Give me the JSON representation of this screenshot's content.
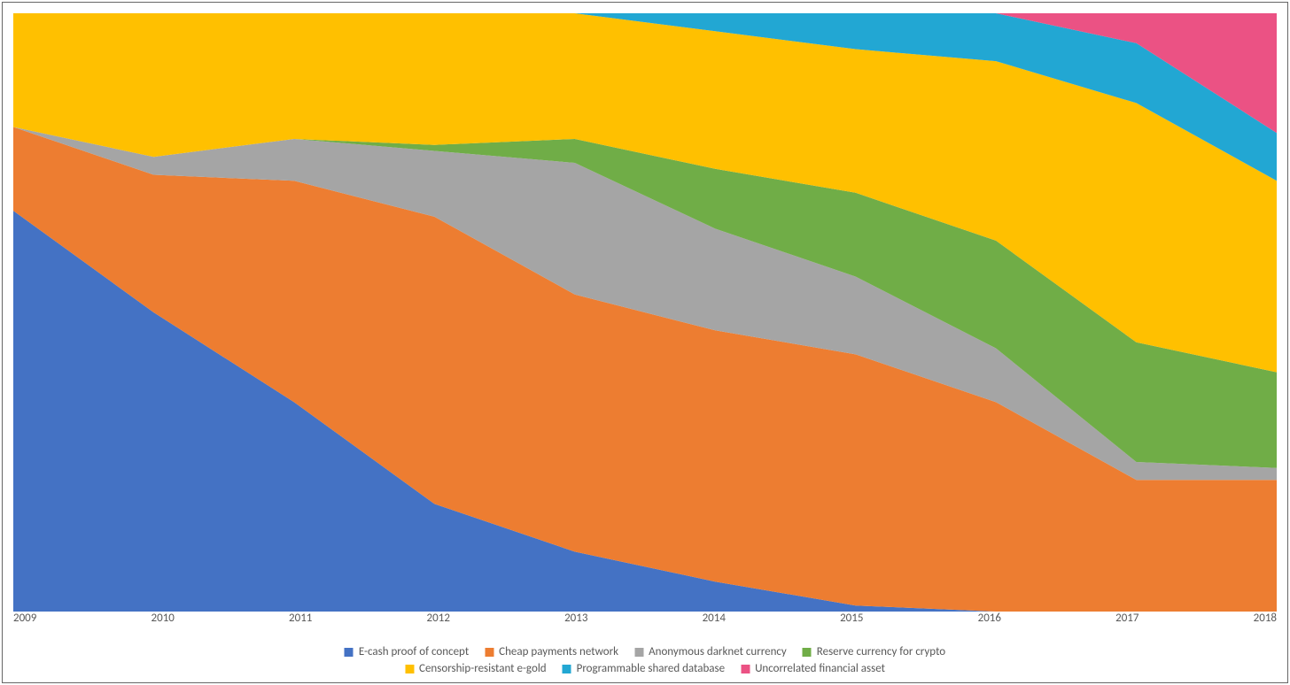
{
  "chart": {
    "type": "area-stacked-100",
    "background_color": "#ffffff",
    "border_color": "#666666",
    "xlim": [
      2009,
      2018
    ],
    "xtick_step": 1,
    "ylim": [
      0,
      100
    ],
    "label_fontsize": 13,
    "label_color": "#595959",
    "categories": [
      "2009",
      "2010",
      "2011",
      "2012",
      "2013",
      "2014",
      "2015",
      "2016",
      "2017",
      "2018"
    ],
    "series": [
      {
        "name": "E-cash proof of concept",
        "color": "#4472c4",
        "values": [
          67,
          50,
          35,
          18,
          10,
          5,
          1,
          0,
          0,
          0
        ]
      },
      {
        "name": "Cheap payments network",
        "color": "#ed7d31",
        "values": [
          14,
          23,
          37,
          48,
          43,
          42,
          42,
          35,
          22,
          22
        ]
      },
      {
        "name": "Anonymous darknet currency",
        "color": "#a5a5a5",
        "values": [
          0,
          3,
          7,
          11,
          22,
          17,
          13,
          9,
          3,
          2
        ]
      },
      {
        "name": "Reserve currency for crypto",
        "color": "#70ad47",
        "values": [
          0,
          0,
          0,
          1,
          4,
          10,
          14,
          18,
          20,
          16
        ]
      },
      {
        "name": "Censorship-resistant e-gold",
        "color": "#ffc000",
        "values": [
          19,
          24,
          21,
          22,
          21,
          23,
          24,
          30,
          40,
          32
        ]
      },
      {
        "name": "Programmable shared database",
        "color": "#22a7d3",
        "values": [
          0,
          0,
          0,
          0,
          0,
          3,
          6,
          8,
          10,
          8
        ]
      },
      {
        "name": "Uncorrelated financial asset",
        "color": "#eb5284",
        "values": [
          0,
          0,
          0,
          0,
          0,
          0,
          0,
          0,
          5,
          20
        ]
      }
    ]
  }
}
